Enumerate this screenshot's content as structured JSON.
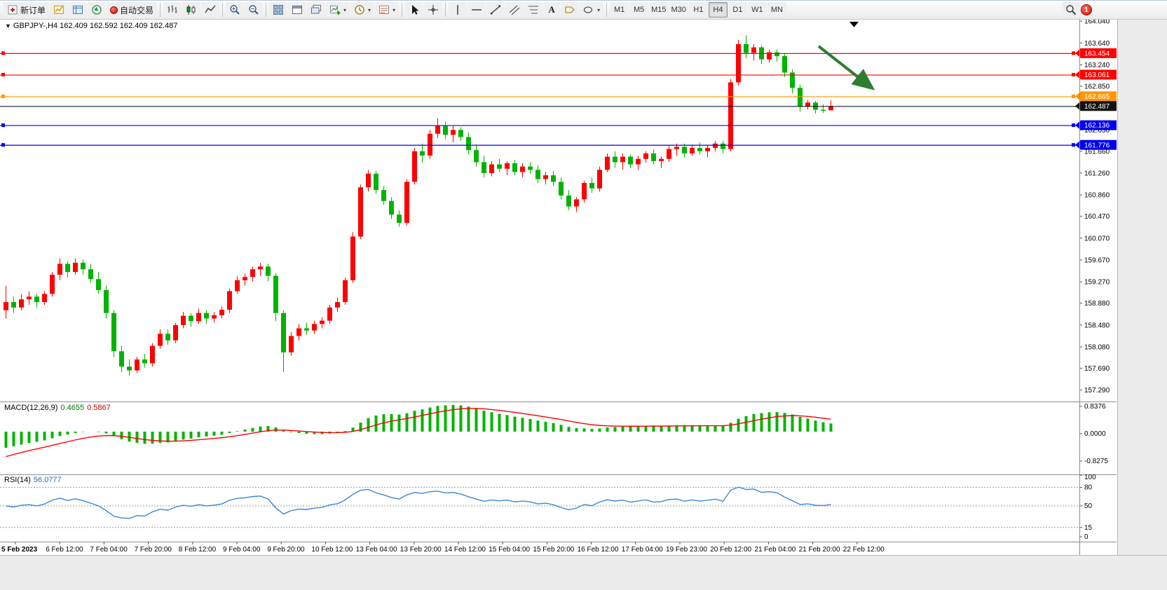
{
  "icons": {
    "down_triangle": "▼",
    "caret": "▾",
    "text_tool": "A"
  },
  "toolbar": {
    "new_order_label": "新订单",
    "auto_trading_label": "自动交易",
    "timeframes": [
      "M1",
      "M5",
      "M15",
      "M30",
      "H1",
      "H4",
      "D1",
      "W1",
      "MN"
    ],
    "active_timeframe": "H4",
    "notification_count": "1"
  },
  "chart": {
    "symbol_ohlc_label": "GBPJPY-,H4  162.409 162.592 162.409 162.487",
    "bid": {
      "price": 162.487,
      "label": "162.487",
      "color": "#000000"
    },
    "hlines": [
      {
        "price": 163.454,
        "label": "163.454",
        "color": "#ff0000"
      },
      {
        "price": 163.061,
        "label": "163.061",
        "color": "#ff0000"
      },
      {
        "price": 162.665,
        "label": "162.665",
        "color": "#ff9800"
      },
      {
        "price": 162.136,
        "label": "162.136",
        "color": "#0000ee"
      },
      {
        "price": 161.776,
        "label": "161.776",
        "color": "#0000ee"
      }
    ],
    "arrow": {
      "color": "#2e7d32"
    }
  },
  "price_scale": {
    "ticks": [
      "164.040",
      "163.640",
      "163.240",
      "162.850",
      "162.450",
      "162.050",
      "161.660",
      "161.260",
      "160.860",
      "160.470",
      "160.070",
      "159.670",
      "159.270",
      "158.880",
      "158.480",
      "158.080",
      "157.690",
      "157.290"
    ]
  },
  "time_axis": {
    "labels": [
      "5 Feb 2023",
      "6 Feb 12:00",
      "7 Feb 04:00",
      "7 Feb 20:00",
      "8 Feb 12:00",
      "9 Feb 04:00",
      "9 Feb 20:00",
      "10 Feb 12:00",
      "13 Feb 04:00",
      "13 Feb 20:00",
      "14 Feb 12:00",
      "15 Feb 04:00",
      "15 Feb 20:00",
      "16 Feb 12:00",
      "17 Feb 04:00",
      "19 Feb 23:00",
      "20 Feb 12:00",
      "21 Feb 04:00",
      "21 Feb 20:00",
      "22 Feb 12:00"
    ]
  },
  "macd": {
    "name": "MACD(12,26,9)",
    "value_main": "0.4655",
    "value_signal": "0.5867",
    "scale": [
      "0.8376",
      "0.0000",
      "-0.8275"
    ]
  },
  "rsi": {
    "name": "RSI(14)",
    "value": "56.0777",
    "scale": [
      "100",
      "80",
      "50",
      "15",
      "0"
    ],
    "levels": [
      80,
      50,
      15
    ]
  },
  "colors": {
    "bull": "#ff0000",
    "bear": "#00b300",
    "macd_hist": "#00b400",
    "macd_signal": "#ff0000",
    "rsi_line": "#3a87d8",
    "separator": "#8e8e8e"
  },
  "chart_data": {
    "type": "candlestick",
    "symbol": "GBPJPY-",
    "timeframe": "H4",
    "ohlc_display": {
      "open": "162.409",
      "high": "162.592",
      "low": "162.409",
      "close": "162.487"
    },
    "candles": [
      [
        158.75,
        159.2,
        158.6,
        158.9
      ],
      [
        158.9,
        159.0,
        158.7,
        158.8
      ],
      [
        158.8,
        159.05,
        158.75,
        158.95
      ],
      [
        158.95,
        159.1,
        158.85,
        159.0
      ],
      [
        159.0,
        159.05,
        158.8,
        158.9
      ],
      [
        158.9,
        159.1,
        158.85,
        159.05
      ],
      [
        159.05,
        159.45,
        159.0,
        159.4
      ],
      [
        159.4,
        159.7,
        159.3,
        159.6
      ],
      [
        159.6,
        159.65,
        159.35,
        159.45
      ],
      [
        159.45,
        159.7,
        159.4,
        159.62
      ],
      [
        159.62,
        159.68,
        159.4,
        159.5
      ],
      [
        159.5,
        159.6,
        159.25,
        159.32
      ],
      [
        159.32,
        159.45,
        159.05,
        159.12
      ],
      [
        159.12,
        159.2,
        158.6,
        158.7
      ],
      [
        158.7,
        158.75,
        157.9,
        158.0
      ],
      [
        158.0,
        158.1,
        157.62,
        157.72
      ],
      [
        157.72,
        157.85,
        157.55,
        157.65
      ],
      [
        157.65,
        157.9,
        157.6,
        157.85
      ],
      [
        157.85,
        157.95,
        157.7,
        157.78
      ],
      [
        157.78,
        158.15,
        157.72,
        158.1
      ],
      [
        158.1,
        158.4,
        158.05,
        158.32
      ],
      [
        158.32,
        158.4,
        158.12,
        158.2
      ],
      [
        158.2,
        158.52,
        158.15,
        158.48
      ],
      [
        158.48,
        158.72,
        158.42,
        158.65
      ],
      [
        158.65,
        158.7,
        158.45,
        158.55
      ],
      [
        158.55,
        158.78,
        158.5,
        158.7
      ],
      [
        158.7,
        158.75,
        158.5,
        158.6
      ],
      [
        158.6,
        158.72,
        158.52,
        158.66
      ],
      [
        158.66,
        158.82,
        158.6,
        158.76
      ],
      [
        158.76,
        159.15,
        158.7,
        159.1
      ],
      [
        159.1,
        159.38,
        159.05,
        159.3
      ],
      [
        159.3,
        159.42,
        159.2,
        159.36
      ],
      [
        159.36,
        159.55,
        159.28,
        159.5
      ],
      [
        159.5,
        159.62,
        159.38,
        159.55
      ],
      [
        159.55,
        159.6,
        159.28,
        159.38
      ],
      [
        159.38,
        159.42,
        158.55,
        158.7
      ],
      [
        158.7,
        158.75,
        157.62,
        157.98
      ],
      [
        157.98,
        158.35,
        157.92,
        158.28
      ],
      [
        158.28,
        158.5,
        158.2,
        158.42
      ],
      [
        158.42,
        158.52,
        158.3,
        158.38
      ],
      [
        158.38,
        158.56,
        158.32,
        158.5
      ],
      [
        158.5,
        158.62,
        158.42,
        158.56
      ],
      [
        158.56,
        158.85,
        158.5,
        158.8
      ],
      [
        158.8,
        158.98,
        158.72,
        158.9
      ],
      [
        158.9,
        159.35,
        158.85,
        159.3
      ],
      [
        159.3,
        160.18,
        159.25,
        160.1
      ],
      [
        160.1,
        161.05,
        160.05,
        161.0
      ],
      [
        161.0,
        161.32,
        160.92,
        161.25
      ],
      [
        161.25,
        161.3,
        160.88,
        160.95
      ],
      [
        160.95,
        161.02,
        160.68,
        160.75
      ],
      [
        160.75,
        160.82,
        160.42,
        160.5
      ],
      [
        160.5,
        160.58,
        160.28,
        160.35
      ],
      [
        160.35,
        161.15,
        160.3,
        161.1
      ],
      [
        161.1,
        161.72,
        161.05,
        161.66
      ],
      [
        161.66,
        161.8,
        161.45,
        161.58
      ],
      [
        161.58,
        162.05,
        161.52,
        161.98
      ],
      [
        161.98,
        162.26,
        161.9,
        162.12
      ],
      [
        162.12,
        162.2,
        161.88,
        161.96
      ],
      [
        161.96,
        162.12,
        161.82,
        162.05
      ],
      [
        162.05,
        162.1,
        161.85,
        161.92
      ],
      [
        161.92,
        162.0,
        161.6,
        161.68
      ],
      [
        161.68,
        161.78,
        161.38,
        161.46
      ],
      [
        161.46,
        161.58,
        161.18,
        161.26
      ],
      [
        161.26,
        161.48,
        161.2,
        161.42
      ],
      [
        161.42,
        161.52,
        161.28,
        161.34
      ],
      [
        161.34,
        161.48,
        161.22,
        161.44
      ],
      [
        161.44,
        161.5,
        161.22,
        161.28
      ],
      [
        161.28,
        161.44,
        161.18,
        161.38
      ],
      [
        161.38,
        161.46,
        161.25,
        161.32
      ],
      [
        161.32,
        161.4,
        161.08,
        161.15
      ],
      [
        161.15,
        161.28,
        161.05,
        161.22
      ],
      [
        161.22,
        161.3,
        161.02,
        161.1
      ],
      [
        161.1,
        161.18,
        160.78,
        160.85
      ],
      [
        160.85,
        160.95,
        160.58,
        160.65
      ],
      [
        160.65,
        160.82,
        160.55,
        160.78
      ],
      [
        160.78,
        161.12,
        160.72,
        161.08
      ],
      [
        161.08,
        161.18,
        160.9,
        160.98
      ],
      [
        160.98,
        161.38,
        160.92,
        161.32
      ],
      [
        161.32,
        161.62,
        161.28,
        161.56
      ],
      [
        161.56,
        161.66,
        161.36,
        161.46
      ],
      [
        161.46,
        161.62,
        161.32,
        161.56
      ],
      [
        161.56,
        161.6,
        161.35,
        161.42
      ],
      [
        161.42,
        161.58,
        161.32,
        161.52
      ],
      [
        161.52,
        161.66,
        161.45,
        161.62
      ],
      [
        161.62,
        161.7,
        161.42,
        161.48
      ],
      [
        161.48,
        161.56,
        161.35,
        161.52
      ],
      [
        161.52,
        161.76,
        161.46,
        161.7
      ],
      [
        161.7,
        161.8,
        161.58,
        161.74
      ],
      [
        161.74,
        161.8,
        161.54,
        161.62
      ],
      [
        161.62,
        161.78,
        161.58,
        161.72
      ],
      [
        161.72,
        161.82,
        161.6,
        161.66
      ],
      [
        161.66,
        161.78,
        161.55,
        161.72
      ],
      [
        161.72,
        161.85,
        161.66,
        161.8
      ],
      [
        161.8,
        161.85,
        161.62,
        161.7
      ],
      [
        161.7,
        162.98,
        161.66,
        162.92
      ],
      [
        162.92,
        163.7,
        162.86,
        163.62
      ],
      [
        163.62,
        163.78,
        163.36,
        163.46
      ],
      [
        163.46,
        163.62,
        163.32,
        163.56
      ],
      [
        163.56,
        163.6,
        163.26,
        163.34
      ],
      [
        163.34,
        163.52,
        163.28,
        163.47
      ],
      [
        163.47,
        163.52,
        163.3,
        163.4
      ],
      [
        163.4,
        163.45,
        163.02,
        163.1
      ],
      [
        163.1,
        163.16,
        162.72,
        162.82
      ],
      [
        162.82,
        162.88,
        162.38,
        162.48
      ],
      [
        162.48,
        162.6,
        162.42,
        162.55
      ],
      [
        162.55,
        162.58,
        162.35,
        162.42
      ],
      [
        162.42,
        162.52,
        162.36,
        162.4
      ],
      [
        162.409,
        162.592,
        162.409,
        162.487
      ]
    ]
  }
}
